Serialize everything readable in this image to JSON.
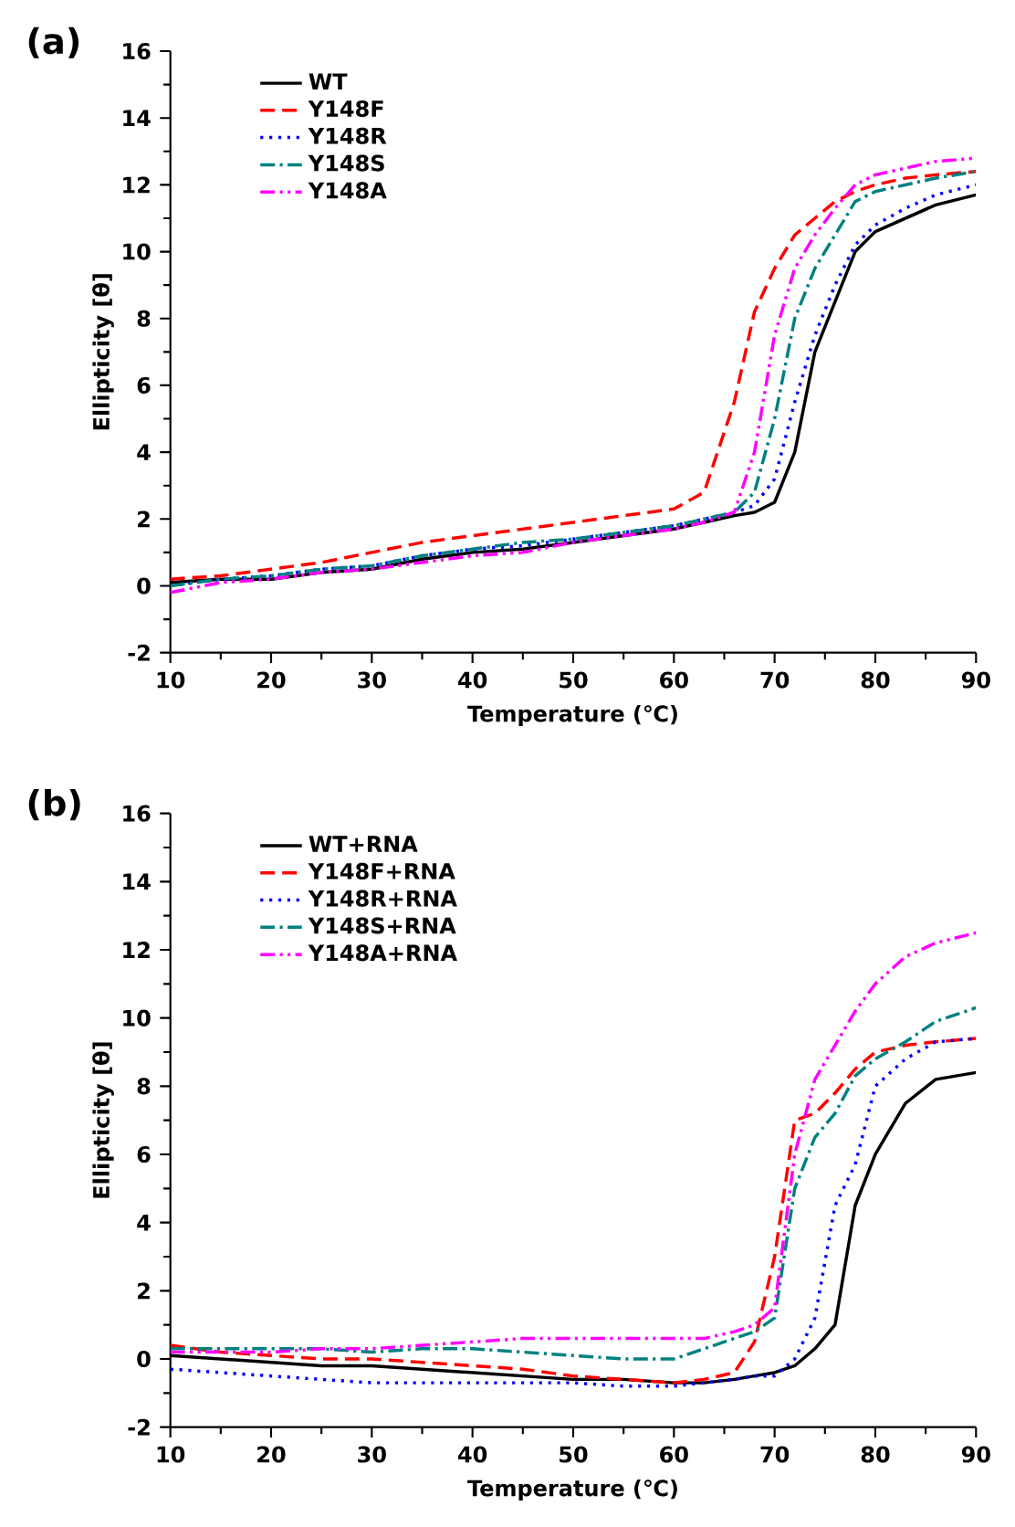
{
  "chart_data": [
    {
      "type": "line",
      "title": "(a)",
      "xlabel": "Temperature (℃)",
      "ylabel": "Ellipticity [θ]",
      "legend": "top left",
      "xlim": [
        10,
        90
      ],
      "ylim": [
        -2,
        16
      ],
      "xticks": [
        10,
        20,
        30,
        40,
        50,
        60,
        70,
        80,
        90
      ],
      "yticks": [
        -2,
        0,
        2,
        4,
        6,
        8,
        10,
        12,
        14,
        16
      ],
      "x": [
        10,
        15,
        20,
        25,
        30,
        35,
        40,
        45,
        50,
        55,
        60,
        63,
        66,
        68,
        70,
        72,
        74,
        76,
        78,
        80,
        83,
        86,
        90
      ],
      "series": [
        {
          "name": "WT",
          "color": "#000000",
          "line_style": "solid",
          "values": [
            0.1,
            0.2,
            0.2,
            0.4,
            0.5,
            0.8,
            1.0,
            1.1,
            1.3,
            1.5,
            1.7,
            1.9,
            2.1,
            2.2,
            2.5,
            4,
            7,
            8.5,
            10,
            10.6,
            11,
            11.4,
            11.7
          ]
        },
        {
          "name": "Y148F",
          "color": "#ff0000",
          "line_style": "dashed",
          "values": [
            0.2,
            0.3,
            0.5,
            0.7,
            1.0,
            1.3,
            1.5,
            1.7,
            1.9,
            2.1,
            2.3,
            2.8,
            5.5,
            8.2,
            9.5,
            10.5,
            11,
            11.5,
            11.8,
            12,
            12.2,
            12.3,
            12.4
          ]
        },
        {
          "name": "Y148R",
          "color": "#0000ff",
          "line_style": "dotted",
          "values": [
            0,
            0.2,
            0.3,
            0.5,
            0.6,
            0.9,
            1.1,
            1.2,
            1.4,
            1.6,
            1.8,
            2.0,
            2.2,
            2.4,
            3.2,
            5.5,
            7.5,
            9,
            10.2,
            10.8,
            11.3,
            11.7,
            12
          ]
        },
        {
          "name": "Y148S",
          "color": "#008080",
          "line_style": "dashdot",
          "values": [
            0,
            0.2,
            0.3,
            0.5,
            0.6,
            0.9,
            1.1,
            1.3,
            1.4,
            1.6,
            1.8,
            2.0,
            2.2,
            2.8,
            5,
            8,
            9.5,
            10.5,
            11.5,
            11.8,
            12,
            12.2,
            12.4
          ]
        },
        {
          "name": "Y148A",
          "color": "#ff00ff",
          "line_style": "dashdotdot",
          "values": [
            -0.2,
            0.1,
            0.2,
            0.4,
            0.5,
            0.7,
            0.9,
            1.0,
            1.3,
            1.5,
            1.7,
            1.9,
            2.2,
            4,
            7.5,
            9.5,
            10.5,
            11.3,
            12,
            12.3,
            12.5,
            12.7,
            12.8
          ]
        }
      ]
    },
    {
      "type": "line",
      "title": "(b)",
      "xlabel": "Temperature (℃)",
      "ylabel": "Ellipticity [θ]",
      "legend": "top left",
      "xlim": [
        10,
        90
      ],
      "ylim": [
        -2,
        16
      ],
      "xticks": [
        10,
        20,
        30,
        40,
        50,
        60,
        70,
        80,
        90
      ],
      "yticks": [
        -2,
        0,
        2,
        4,
        6,
        8,
        10,
        12,
        14,
        16
      ],
      "x": [
        10,
        15,
        20,
        25,
        30,
        35,
        40,
        45,
        50,
        55,
        60,
        63,
        66,
        68,
        70,
        72,
        74,
        76,
        78,
        80,
        83,
        86,
        90
      ],
      "series": [
        {
          "name": "WT+RNA",
          "color": "#000000",
          "line_style": "solid",
          "values": [
            0.1,
            0,
            -0.1,
            -0.2,
            -0.2,
            -0.3,
            -0.4,
            -0.5,
            -0.6,
            -0.6,
            -0.7,
            -0.7,
            -0.6,
            -0.5,
            -0.4,
            -0.2,
            0.3,
            1.0,
            4.5,
            6,
            7.5,
            8.2,
            8.4
          ]
        },
        {
          "name": "Y148F+RNA",
          "color": "#ff0000",
          "line_style": "dashed",
          "values": [
            0.4,
            0.2,
            0.1,
            0,
            0,
            -0.1,
            -0.2,
            -0.3,
            -0.5,
            -0.6,
            -0.7,
            -0.6,
            -0.4,
            0.5,
            3,
            7,
            7.2,
            7.8,
            8.5,
            9,
            9.2,
            9.3,
            9.4
          ]
        },
        {
          "name": "Y148R+RNA",
          "color": "#0000ff",
          "line_style": "dotted",
          "values": [
            -0.3,
            -0.4,
            -0.5,
            -0.6,
            -0.7,
            -0.7,
            -0.7,
            -0.7,
            -0.7,
            -0.8,
            -0.8,
            -0.7,
            -0.6,
            -0.5,
            -0.5,
            0,
            1.2,
            4.5,
            5.7,
            8,
            8.8,
            9.3,
            9.4
          ]
        },
        {
          "name": "Y148S+RNA",
          "color": "#008080",
          "line_style": "dashdot",
          "values": [
            0.3,
            0.3,
            0.3,
            0.3,
            0.2,
            0.3,
            0.3,
            0.2,
            0.1,
            0,
            0,
            0.3,
            0.6,
            0.8,
            1.2,
            5,
            6.5,
            7.2,
            8.3,
            8.8,
            9.3,
            9.9,
            10.3
          ]
        },
        {
          "name": "Y148A+RNA",
          "color": "#ff00ff",
          "line_style": "dashdotdot",
          "values": [
            0.2,
            0.2,
            0.2,
            0.3,
            0.3,
            0.4,
            0.5,
            0.6,
            0.6,
            0.6,
            0.6,
            0.6,
            0.8,
            1.0,
            1.5,
            6,
            8.2,
            9.2,
            10.2,
            11,
            11.8,
            12.2,
            12.5
          ]
        }
      ]
    }
  ]
}
